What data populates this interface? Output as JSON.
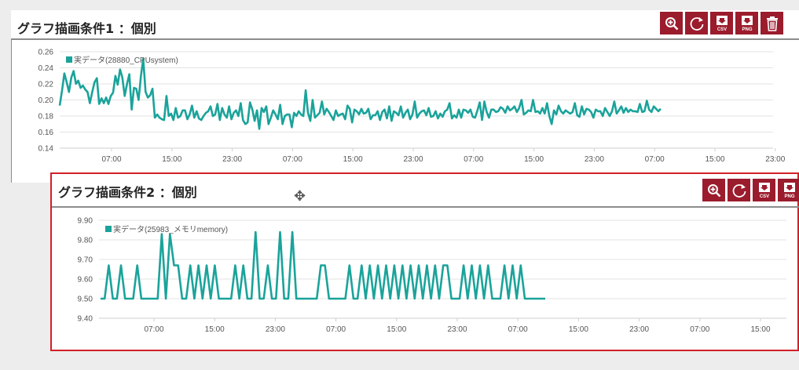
{
  "panel1": {
    "title": "グラフ描画条件1 ：個別",
    "toolbar": [
      {
        "name": "zoom-in-icon",
        "label": ""
      },
      {
        "name": "refresh-icon",
        "label": ""
      },
      {
        "name": "csv-download-icon",
        "label": "CSV"
      },
      {
        "name": "png-download-icon",
        "label": "PNG"
      },
      {
        "name": "trash-icon",
        "label": ""
      }
    ]
  },
  "panel2": {
    "title": "グラフ描画条件2 ：個別",
    "toolbar": [
      {
        "name": "zoom-in-icon",
        "label": ""
      },
      {
        "name": "refresh-icon",
        "label": ""
      },
      {
        "name": "csv-download-icon",
        "label": "CSV"
      },
      {
        "name": "png-download-icon",
        "label": "PNG"
      }
    ]
  },
  "colors": {
    "series": "#1aa39a",
    "button": "#9b1c2c",
    "highlight": "#d21f26"
  },
  "chart_data": [
    {
      "type": "line",
      "series": [
        {
          "name": "実データ(28880_CPUsystem)",
          "values": [
            0.193,
            0.212,
            0.233,
            0.222,
            0.21,
            0.228,
            0.236,
            0.22,
            0.224,
            0.215,
            0.218,
            0.213,
            0.21,
            0.196,
            0.21,
            0.222,
            0.227,
            0.195,
            0.202,
            0.196,
            0.203,
            0.195,
            0.205,
            0.209,
            0.23,
            0.219,
            0.238,
            0.228,
            0.205,
            0.22,
            0.232,
            0.188,
            0.215,
            0.214,
            0.2,
            0.23,
            0.251,
            0.21,
            0.203,
            0.206,
            0.214,
            0.178,
            0.182,
            0.178,
            0.176,
            0.175,
            0.205,
            0.18,
            0.183,
            0.175,
            0.19,
            0.178,
            0.18,
            0.187,
            0.187,
            0.176,
            0.182,
            0.193,
            0.178,
            0.186,
            0.177,
            0.175,
            0.18,
            0.184,
            0.186,
            0.192,
            0.18,
            0.182,
            0.195,
            0.175,
            0.19,
            0.182,
            0.178,
            0.192,
            0.176,
            0.184,
            0.187,
            0.18,
            0.196,
            0.175,
            0.17,
            0.172,
            0.197,
            0.188,
            0.174,
            0.187,
            0.164,
            0.19,
            0.185,
            0.192,
            0.17,
            0.178,
            0.187,
            0.182,
            0.176,
            0.194,
            0.17,
            0.18,
            0.182,
            0.182,
            0.166,
            0.184,
            0.18,
            0.186,
            0.182,
            0.18,
            0.212,
            0.184,
            0.174,
            0.2,
            0.178,
            0.181,
            0.184,
            0.198,
            0.182,
            0.189,
            0.185,
            0.18,
            0.175,
            0.187,
            0.18,
            0.182,
            0.183,
            0.176,
            0.193,
            0.189,
            0.172,
            0.188,
            0.186,
            0.182,
            0.189,
            0.183,
            0.184,
            0.189,
            0.176,
            0.181,
            0.181,
            0.186,
            0.175,
            0.185,
            0.188,
            0.177,
            0.192,
            0.174,
            0.186,
            0.184,
            0.181,
            0.192,
            0.178,
            0.184,
            0.188,
            0.176,
            0.182,
            0.198,
            0.178,
            0.183,
            0.186,
            0.187,
            0.181,
            0.19,
            0.179,
            0.18,
            0.186,
            0.177,
            0.183,
            0.179,
            0.186,
            0.188,
            0.196,
            0.177,
            0.181,
            0.178,
            0.188,
            0.178,
            0.188,
            0.187,
            0.184,
            0.188,
            0.179,
            0.178,
            0.187,
            0.197,
            0.175,
            0.198,
            0.185,
            0.178,
            0.188,
            0.188,
            0.185,
            0.186,
            0.191,
            0.189,
            0.184,
            0.192,
            0.187,
            0.189,
            0.192,
            0.185,
            0.19,
            0.2,
            0.182,
            0.184,
            0.187,
            0.186,
            0.2,
            0.185,
            0.186,
            0.183,
            0.19,
            0.183,
            0.196,
            0.18,
            0.17,
            0.187,
            0.182,
            0.193,
            0.186,
            0.183,
            0.187,
            0.185,
            0.183,
            0.185,
            0.196,
            0.181,
            0.179,
            0.192,
            0.182,
            0.189,
            0.188,
            0.185,
            0.178,
            0.188,
            0.186,
            0.186,
            0.18,
            0.19,
            0.185,
            0.18,
            0.186,
            0.198,
            0.183,
            0.187,
            0.192,
            0.184,
            0.19,
            0.185,
            0.188,
            0.186,
            0.186,
            0.185,
            0.195,
            0.185,
            0.186,
            0.199,
            0.188,
            0.185,
            0.192,
            0.189,
            0.186,
            0.189
          ]
        }
      ],
      "x_tick_labels": [
        "07:00",
        "15:00",
        "23:00",
        "07:00",
        "15:00",
        "23:00",
        "07:00",
        "15:00",
        "23:00",
        "07:00",
        "15:00",
        "23:00"
      ],
      "y_ticks": [
        "0.26",
        "0.24",
        "0.22",
        "0.20",
        "0.18",
        "0.16",
        "0.14"
      ],
      "ylim": [
        0.14,
        0.26
      ],
      "legend": "top-left"
    },
    {
      "type": "line",
      "series": [
        {
          "name": "実データ(25983_メモリmemory)",
          "values": [
            9.5,
            9.5,
            9.67,
            9.5,
            9.5,
            9.67,
            9.5,
            9.5,
            9.5,
            9.67,
            9.5,
            9.5,
            9.5,
            9.5,
            9.5,
            9.83,
            9.5,
            9.83,
            9.67,
            9.67,
            9.5,
            9.5,
            9.67,
            9.5,
            9.67,
            9.5,
            9.67,
            9.5,
            9.67,
            9.5,
            9.5,
            9.5,
            9.5,
            9.67,
            9.5,
            9.67,
            9.5,
            9.5,
            9.84,
            9.5,
            9.5,
            9.67,
            9.5,
            9.5,
            9.84,
            9.5,
            9.5,
            9.84,
            9.5,
            9.5,
            9.5,
            9.5,
            9.5,
            9.5,
            9.67,
            9.67,
            9.5,
            9.5,
            9.5,
            9.5,
            9.5,
            9.67,
            9.5,
            9.5,
            9.67,
            9.5,
            9.67,
            9.5,
            9.67,
            9.5,
            9.67,
            9.5,
            9.67,
            9.5,
            9.67,
            9.5,
            9.67,
            9.5,
            9.67,
            9.5,
            9.67,
            9.5,
            9.67,
            9.5,
            9.67,
            9.67,
            9.5,
            9.5,
            9.5,
            9.67,
            9.5,
            9.67,
            9.5,
            9.67,
            9.5,
            9.67,
            9.5,
            9.5,
            9.5,
            9.67,
            9.5,
            9.67,
            9.5,
            9.67,
            9.5,
            9.5,
            9.5,
            9.5,
            9.5,
            9.5
          ]
        }
      ],
      "x_tick_labels": [
        "07:00",
        "15:00",
        "23:00",
        "07:00",
        "15:00",
        "23:00",
        "07:00",
        "15:00",
        "23:00",
        "07:00",
        "15:00"
      ],
      "y_ticks": [
        "9.90",
        "9.80",
        "9.70",
        "9.60",
        "9.50",
        "9.40"
      ],
      "ylim": [
        9.4,
        9.9
      ],
      "legend": "top-left"
    }
  ]
}
